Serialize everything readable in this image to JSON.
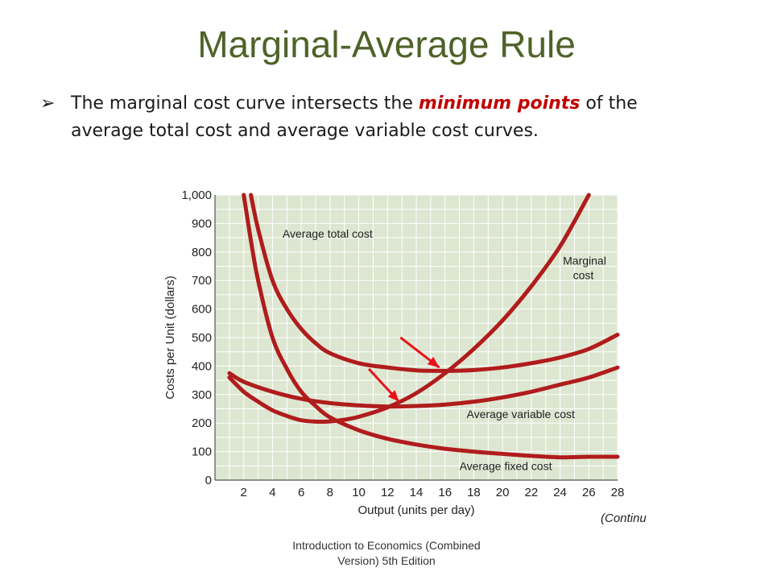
{
  "slide": {
    "title": "Marginal-Average Rule",
    "bullet_pre": "The marginal cost curve intersects the ",
    "bullet_highlight": "minimum points",
    "bullet_post_line1": " of the",
    "bullet_line2": "average total cost and average variable cost curves.",
    "footer_line1": "Introduction to Economics (Combined",
    "footer_line2": "Version) 5th Edition",
    "continued": "(Continu"
  },
  "colors": {
    "title": "#4f6228",
    "highlight": "#c00000",
    "curve": "#b01c1c",
    "arrow": "#e8141c",
    "plot_bg": "#dde6d0",
    "grid": "#ffffff"
  },
  "chart_data": {
    "type": "line",
    "xlabel": "Output (units per day)",
    "ylabel": "Costs per Unit (dollars)",
    "xlim": [
      0,
      28
    ],
    "ylim": [
      0,
      1000
    ],
    "x_ticks": [
      2,
      4,
      6,
      8,
      10,
      12,
      14,
      16,
      18,
      20,
      22,
      24,
      26,
      28
    ],
    "y_ticks": [
      0,
      100,
      200,
      300,
      400,
      500,
      600,
      700,
      800,
      900,
      1000
    ],
    "y_tick_labels": [
      "0",
      "100",
      "200",
      "300",
      "400",
      "500",
      "600",
      "700",
      "800",
      "900",
      "1,000"
    ],
    "grid": true,
    "series": [
      {
        "name": "Average total cost",
        "x": [
          2.5,
          3,
          4,
          5,
          6,
          7,
          8,
          10,
          12,
          14,
          16,
          18,
          20,
          22,
          24,
          26,
          28
        ],
        "y": [
          1000,
          880,
          700,
          600,
          530,
          480,
          445,
          410,
          395,
          385,
          383,
          386,
          395,
          410,
          430,
          460,
          510
        ]
      },
      {
        "name": "Marginal cost",
        "x": [
          1,
          2,
          3,
          4,
          5,
          6,
          7,
          8,
          9,
          10,
          12,
          14,
          16,
          18,
          20,
          22,
          24,
          26
        ],
        "y": [
          360,
          310,
          275,
          245,
          225,
          210,
          205,
          206,
          212,
          222,
          255,
          305,
          375,
          460,
          560,
          680,
          820,
          1000
        ]
      },
      {
        "name": "Average variable cost",
        "x": [
          1,
          2,
          4,
          6,
          8,
          10,
          12,
          14,
          16,
          18,
          20,
          22,
          24,
          26,
          28
        ],
        "y": [
          375,
          345,
          310,
          285,
          270,
          262,
          258,
          260,
          265,
          275,
          290,
          310,
          335,
          360,
          395
        ]
      },
      {
        "name": "Average fixed cost",
        "x": [
          2,
          2.5,
          3,
          4,
          5,
          6,
          7,
          8,
          10,
          12,
          14,
          16,
          18,
          20,
          22,
          24,
          26,
          28
        ],
        "y": [
          1000,
          840,
          700,
          500,
          390,
          310,
          260,
          220,
          175,
          145,
          125,
          110,
          100,
          92,
          85,
          80,
          82,
          82
        ]
      }
    ],
    "annotations": [
      {
        "text": "Average total cost",
        "x": 4.7,
        "y": 850
      },
      {
        "text": "Marginal",
        "x": 24.2,
        "y": 755
      },
      {
        "text": "cost",
        "x": 24.9,
        "y": 705
      },
      {
        "text": "Average variable cost",
        "x": 17.5,
        "y": 218
      },
      {
        "text": "Average fixed cost",
        "x": 17.0,
        "y": 35
      }
    ],
    "arrows": [
      {
        "from": [
          12.9,
          500
        ],
        "to": [
          15.6,
          395
        ]
      },
      {
        "from": [
          10.7,
          390
        ],
        "to": [
          12.8,
          275
        ]
      }
    ]
  }
}
